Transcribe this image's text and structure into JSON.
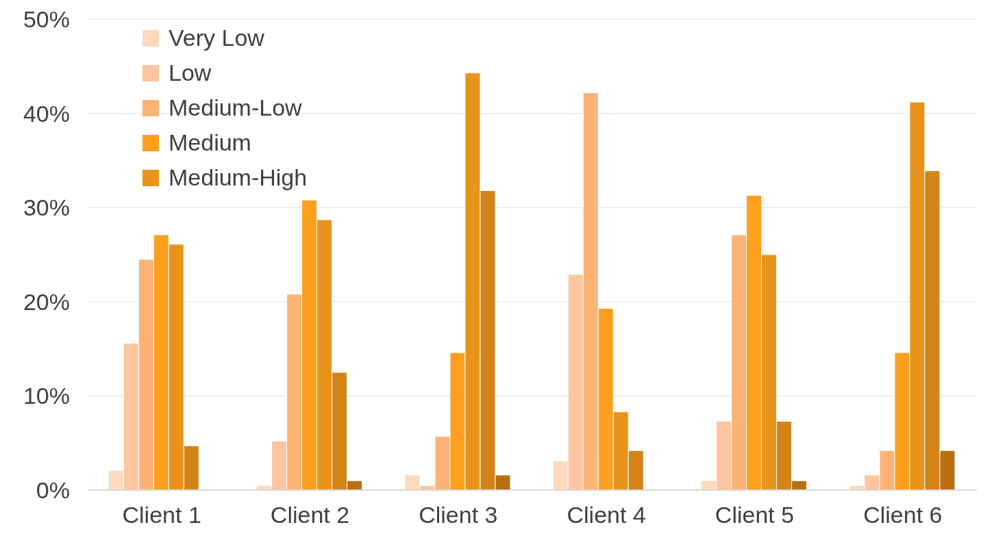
{
  "chart_data": {
    "type": "bar",
    "categories": [
      "Client 1",
      "Client 2",
      "Client 3",
      "Client 4",
      "Client 5",
      "Client 6"
    ],
    "series": [
      {
        "name": "Very Low",
        "color": "#fdd9c0",
        "values": [
          2.1,
          0.5,
          1.6,
          3.1,
          1.0,
          0.5
        ]
      },
      {
        "name": "Low",
        "color": "#fec6a0",
        "values": [
          15.6,
          5.2,
          0.5,
          22.9,
          7.3,
          1.6
        ]
      },
      {
        "name": "Medium-Low",
        "color": "#feb376",
        "values": [
          24.5,
          20.8,
          5.7,
          42.2,
          27.1,
          4.2
        ]
      },
      {
        "name": "Medium",
        "color": "#fe9f1e",
        "values": [
          27.1,
          30.8,
          14.6,
          19.3,
          31.3,
          14.6
        ]
      },
      {
        "name": "Medium-High",
        "color": "#e8931b",
        "values": [
          26.1,
          28.7,
          44.3,
          8.3,
          25.0,
          41.2
        ]
      },
      {
        "color": "#d48318",
        "values": [
          4.7,
          12.5,
          31.8,
          4.2,
          7.3,
          33.9
        ]
      },
      {
        "color": "#b86f12",
        "values": [
          0,
          1.0,
          1.6,
          0,
          1.0,
          4.2
        ]
      }
    ],
    "ylim": [
      0,
      50
    ],
    "yticks": [
      {
        "value": 0,
        "label": "0%"
      },
      {
        "value": 10,
        "label": "10%"
      },
      {
        "value": 20,
        "label": "20%"
      },
      {
        "value": 30,
        "label": "30%"
      },
      {
        "value": 40,
        "label": "40%"
      },
      {
        "value": 50,
        "label": "50%"
      }
    ],
    "grid": "y",
    "legend": "top left"
  }
}
